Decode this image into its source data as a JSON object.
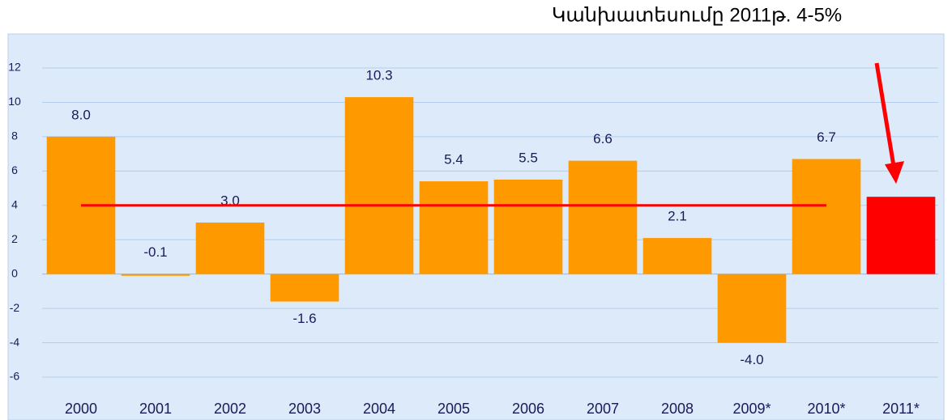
{
  "chart_data": {
    "type": "bar",
    "annotation": "Կանխատեսումը 2011թ. 4-5%",
    "categories": [
      "2000",
      "2001",
      "2002",
      "2003",
      "2004",
      "2005",
      "2006",
      "2007",
      "2008",
      "2009*",
      "2010*",
      "2011*"
    ],
    "values": [
      8.0,
      -0.1,
      3.0,
      -1.6,
      10.3,
      5.4,
      5.5,
      6.6,
      2.1,
      -4.0,
      6.7,
      4.5
    ],
    "value_labels": [
      "8.0",
      "-0.1",
      "3.0",
      "-1.6",
      "10.3",
      "5.4",
      "5.5",
      "6.6",
      "2.1",
      "-4.0",
      "6.7",
      null
    ],
    "colors": [
      "#ff9900",
      "#ff9900",
      "#ff9900",
      "#ff9900",
      "#ff9900",
      "#ff9900",
      "#ff9900",
      "#ff9900",
      "#ff9900",
      "#ff9900",
      "#ff9900",
      "#ff0000"
    ],
    "reference_line": {
      "value": 4,
      "color": "#ff0000",
      "from": "2000",
      "to": "2010*"
    },
    "ylim": [
      -6,
      12
    ],
    "yticks": [
      -6,
      -4,
      -2,
      0,
      2,
      4,
      6,
      8,
      10,
      12
    ],
    "grid": true
  }
}
